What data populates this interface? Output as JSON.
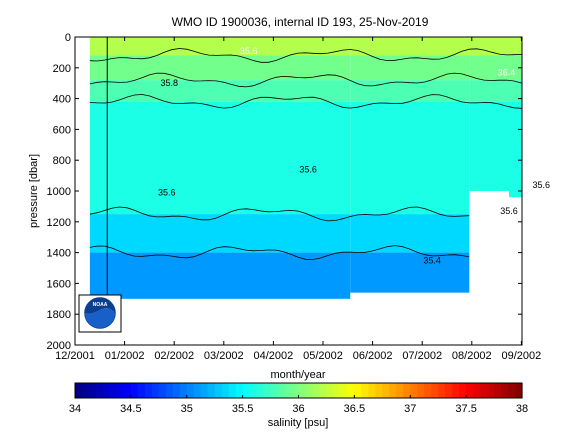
{
  "chart_data": {
    "type": "heatmap",
    "title": "WMO ID 1900036, internal ID 193, 25-Nov-2019",
    "xlabel": "month/year",
    "ylabel": "pressure [dbar]",
    "colorbar_label": "salinity [psu]",
    "x_ticks": [
      "12/2001",
      "01/2002",
      "02/2002",
      "03/2002",
      "04/2002",
      "05/2002",
      "06/2002",
      "07/2002",
      "08/2002",
      "09/2002"
    ],
    "y_ticks": [
      "0",
      "200",
      "400",
      "600",
      "800",
      "1000",
      "1200",
      "1400",
      "1600",
      "1800",
      "2000"
    ],
    "ylim": [
      0,
      2000
    ],
    "y_reversed": true,
    "colorbar_ticks": [
      "34",
      "34.5",
      "35",
      "35.5",
      "36",
      "36.5",
      "37",
      "37.5",
      "38"
    ],
    "clim": [
      34,
      38
    ],
    "colormap": "jet",
    "contour_labels": [
      {
        "text": "35.6",
        "x_month": 3.5,
        "pressure": 90
      },
      {
        "text": "36.4",
        "x_month": 8.7,
        "pressure": 230
      },
      {
        "text": "35.8",
        "x_month": 1.9,
        "pressure": 300
      },
      {
        "text": "35.6",
        "x_month": 4.7,
        "pressure": 860
      },
      {
        "text": "35.6",
        "x_month": 1.85,
        "pressure": 1010
      },
      {
        "text": "35.6",
        "x_month": 9.4,
        "pressure": 960
      },
      {
        "text": "35.6",
        "x_month": 8.75,
        "pressure": 1130
      },
      {
        "text": "35.4",
        "x_month": 7.2,
        "pressure": 1450
      }
    ],
    "salinity_bands": [
      {
        "top": 0,
        "bottom": 120,
        "value": 36.2
      },
      {
        "top": 120,
        "bottom": 280,
        "value": 35.95
      },
      {
        "top": 280,
        "bottom": 420,
        "value": 35.8
      },
      {
        "top": 420,
        "bottom": 1150,
        "value": 35.6
      },
      {
        "top": 1150,
        "bottom": 1400,
        "value": 35.35
      },
      {
        "top": 1400,
        "bottom": 1700,
        "value": 35.1
      }
    ],
    "data_coverage": [
      {
        "x_start_month": 0.3,
        "x_end_month": 5.55,
        "pressure_max": 1700
      },
      {
        "x_start_month": 5.55,
        "x_end_month": 7.95,
        "pressure_max": 1660
      },
      {
        "x_start_month": 7.95,
        "x_end_month": 8.75,
        "pressure_max": 1000
      },
      {
        "x_start_month": 8.75,
        "x_end_month": 9.45,
        "pressure_max": 1040
      }
    ],
    "marker_line_month": 0.65,
    "logo": {
      "text": "NOAA",
      "color": "#0a3e8f"
    }
  }
}
